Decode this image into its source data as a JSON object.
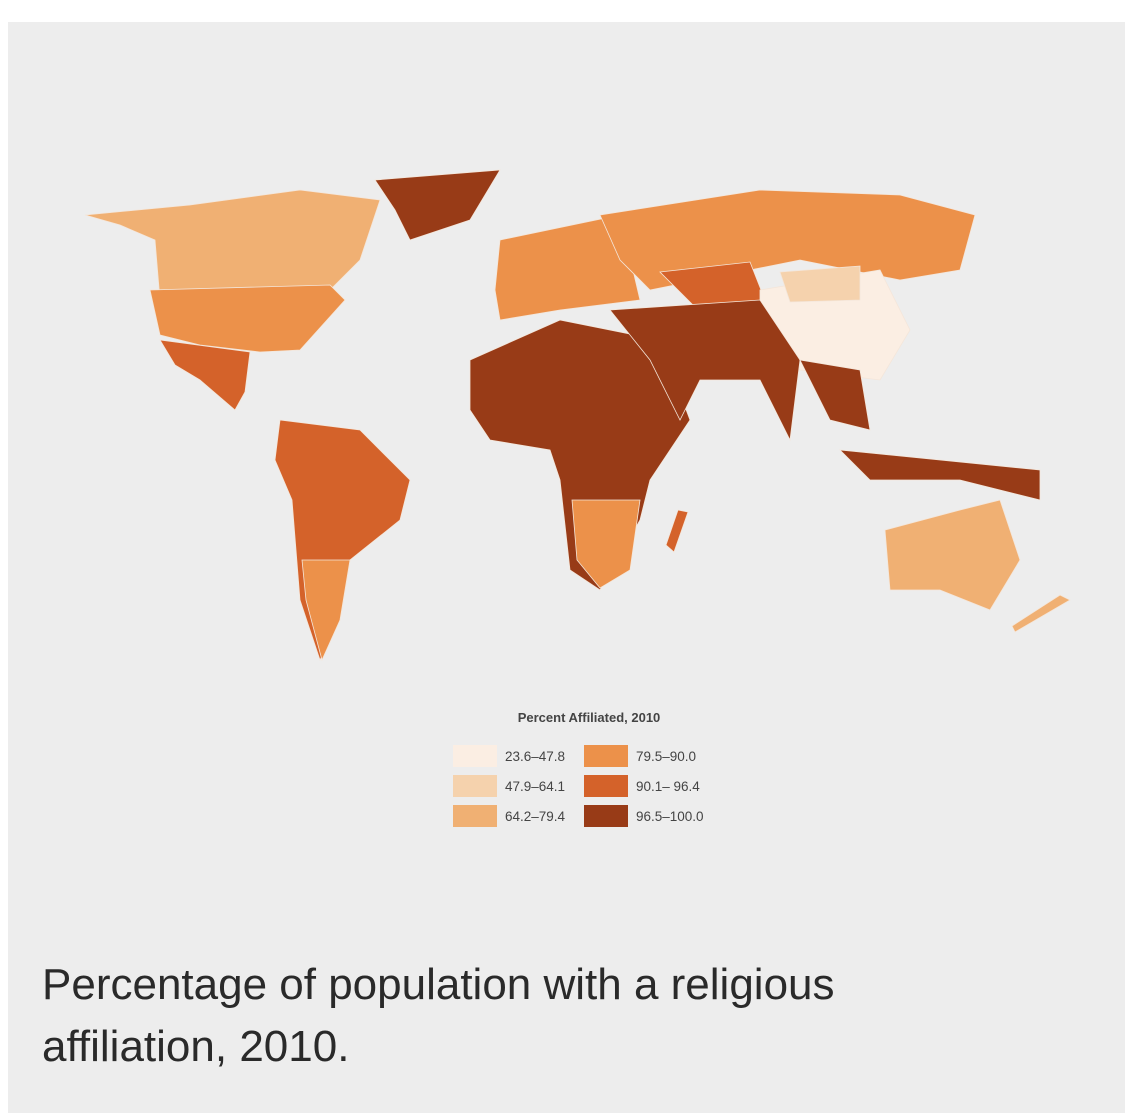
{
  "legend": {
    "title": "Percent Affiliated, 2010",
    "items": [
      {
        "label": "23.6–47.8",
        "color": "#fbeee3"
      },
      {
        "label": "47.9–64.1",
        "color": "#f5d2ad"
      },
      {
        "label": "64.2–79.4",
        "color": "#f0b073"
      },
      {
        "label": "79.5–90.0",
        "color": "#ec914a"
      },
      {
        "label": "90.1– 96.4",
        "color": "#d4622a"
      },
      {
        "label": "96.5–100.0",
        "color": "#983b17"
      }
    ]
  },
  "caption": "Percentage of population with a religious affiliation, 2010."
}
